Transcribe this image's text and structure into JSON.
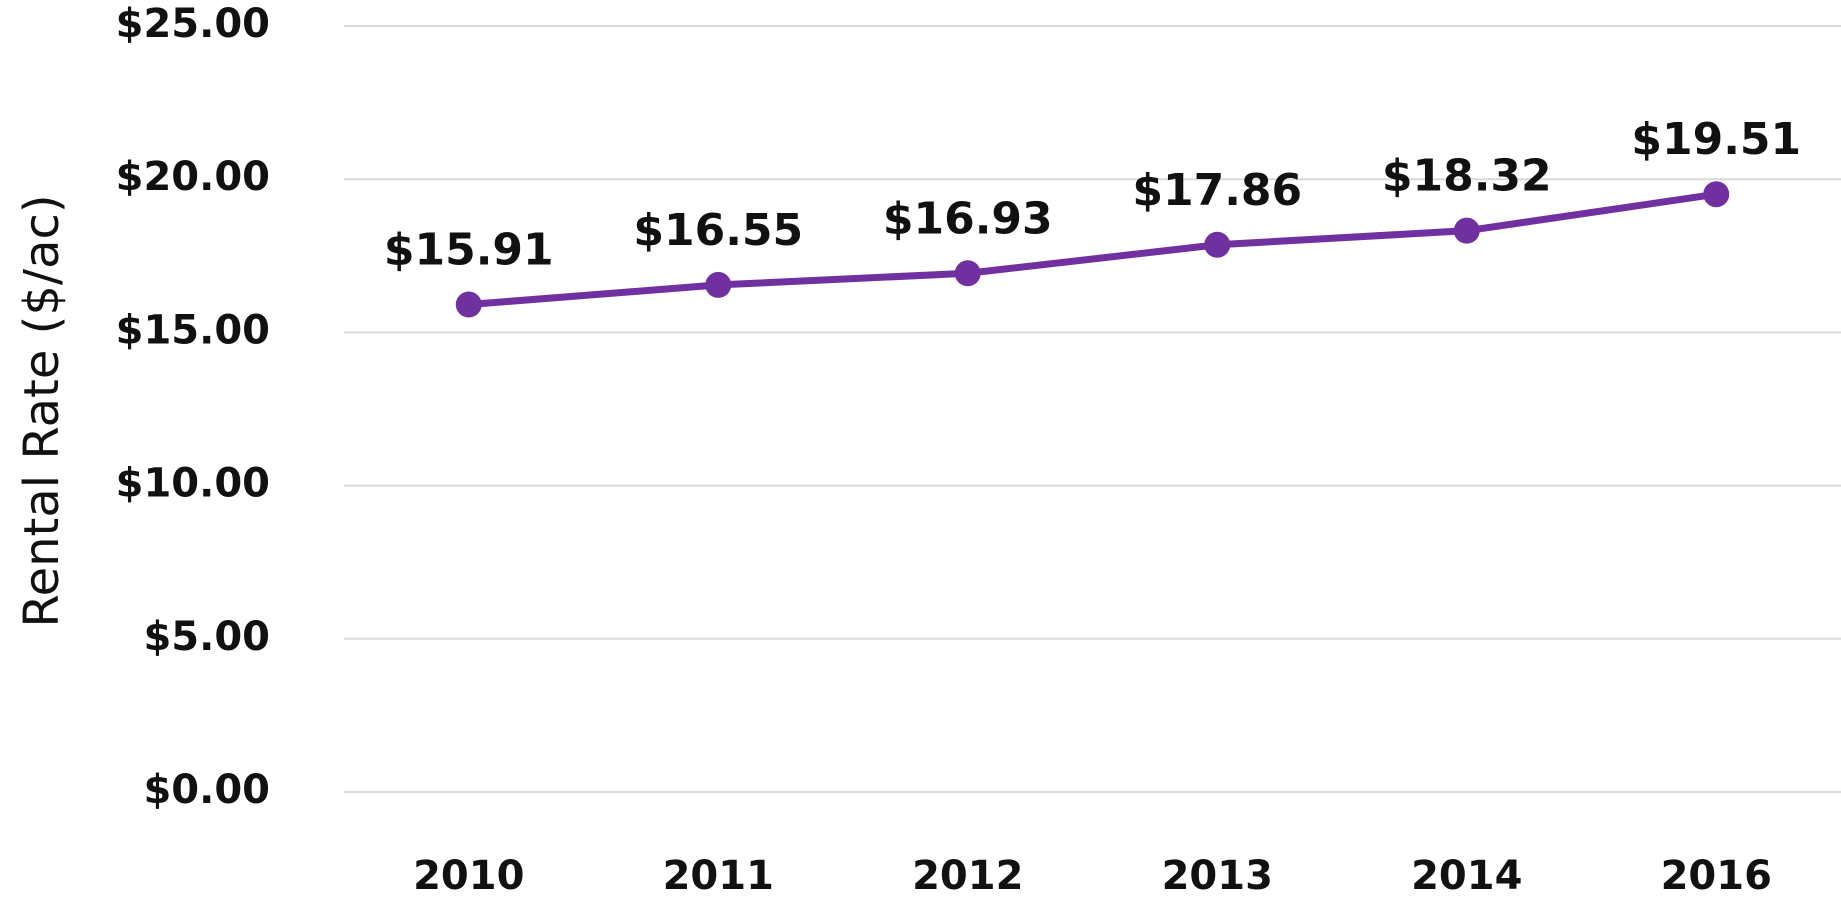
{
  "chart_data": {
    "type": "line",
    "y_label": "Rental Rate ($/ac)",
    "categories": [
      "2010",
      "2011",
      "2012",
      "2013",
      "2014",
      "2016"
    ],
    "values": [
      15.91,
      16.55,
      16.93,
      17.86,
      18.32,
      19.51
    ],
    "value_labels": [
      "$15.91",
      "$16.55",
      "$16.93",
      "$17.86",
      "$18.32",
      "$19.51"
    ],
    "color": "#7030a0",
    "ylim": [
      0,
      25
    ],
    "yticks": [
      {
        "value": 0,
        "label": "$0.00"
      },
      {
        "value": 5,
        "label": "$5.00"
      },
      {
        "value": 10,
        "label": "$10.00"
      },
      {
        "value": 15,
        "label": "$15.00"
      },
      {
        "value": 20,
        "label": "$20.00"
      },
      {
        "value": 25,
        "label": "$25.00"
      }
    ],
    "grid": true
  }
}
